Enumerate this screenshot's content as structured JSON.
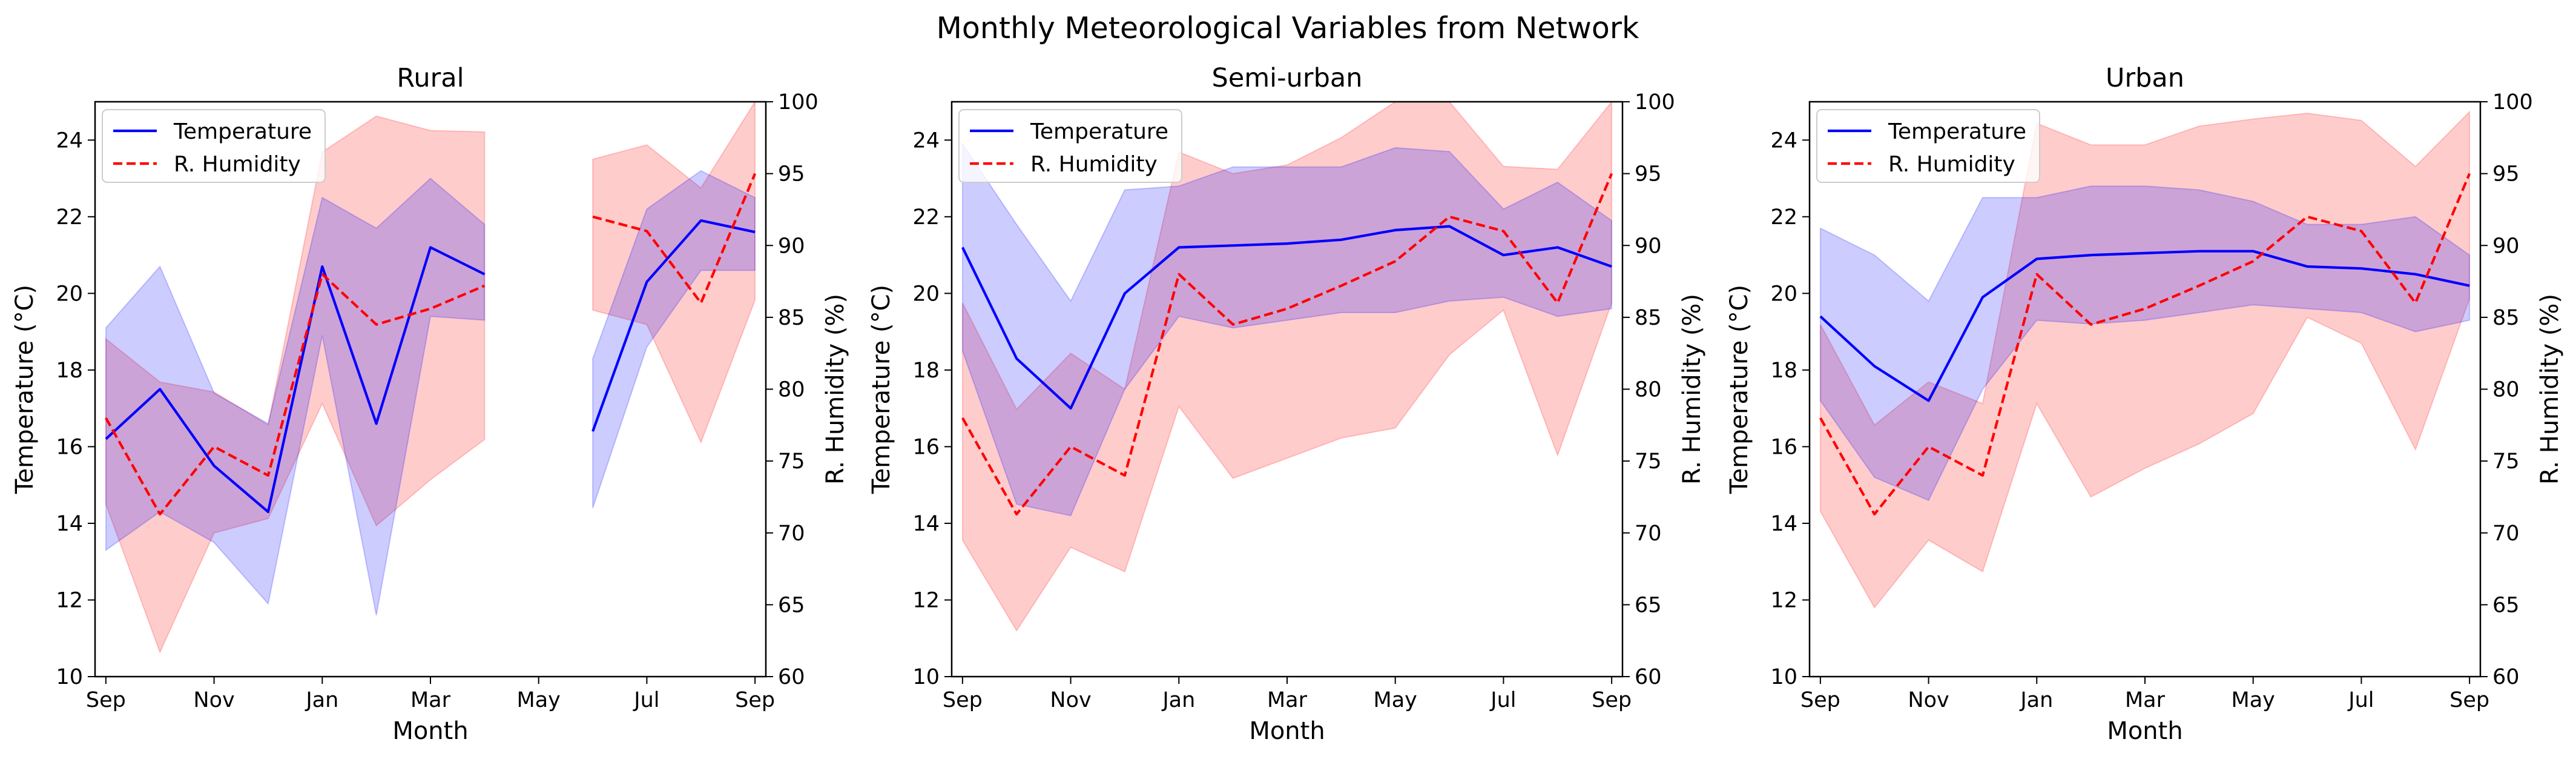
{
  "figure": {
    "title": "Monthly Meteorological Variables from Network"
  },
  "colors": {
    "temperature": "#0000ff",
    "temperature_band": "#0000ff",
    "humidity": "#ff0000",
    "humidity_band": "#ff0000"
  },
  "chart_data": [
    {
      "type": "line",
      "title": "Rural",
      "xlabel": "Month",
      "ylabel": "Temperature (°C)",
      "ylabel_right": "R. Humidity (%)",
      "xlim": [
        -0.2,
        12.2
      ],
      "ylim": [
        10,
        25
      ],
      "ylim_right": [
        60,
        100
      ],
      "x_ticks": [
        0,
        2,
        4,
        6,
        8,
        10,
        12
      ],
      "x_tick_labels": [
        "Sep",
        "Nov",
        "Jan",
        "Mar",
        "May",
        "Jul",
        "Sep"
      ],
      "y_ticks": [
        10,
        12,
        14,
        16,
        18,
        20,
        22,
        24
      ],
      "y_ticks_right": [
        60,
        65,
        70,
        75,
        80,
        85,
        90,
        95,
        100
      ],
      "legend": {
        "location": "upper-left",
        "entries": [
          "Temperature",
          "R. Humidity"
        ]
      },
      "x": [
        0,
        1,
        2,
        3,
        4,
        5,
        6,
        7,
        8,
        9,
        10,
        11,
        12
      ],
      "series": [
        {
          "name": "Temperature",
          "axis": "left",
          "style": "solid",
          "values": [
            16.2,
            17.5,
            15.5,
            14.3,
            20.7,
            16.6,
            21.2,
            20.5,
            null,
            16.4,
            20.3,
            21.9,
            21.6
          ],
          "lower": [
            13.3,
            14.3,
            13.5,
            11.9,
            18.9,
            11.6,
            19.4,
            19.3,
            null,
            14.4,
            18.6,
            20.6,
            20.6
          ],
          "upper": [
            19.1,
            20.7,
            17.4,
            16.6,
            22.5,
            21.7,
            23.0,
            21.8,
            null,
            18.3,
            22.2,
            23.2,
            22.5
          ]
        },
        {
          "name": "R. Humidity",
          "axis": "right",
          "style": "dashed",
          "values": [
            78.0,
            71.3,
            76.0,
            74.0,
            88.0,
            84.5,
            85.6,
            87.2,
            null,
            92.0,
            91.0,
            86.0,
            95.0
          ],
          "lower": [
            72.0,
            61.7,
            70.0,
            71.0,
            79.0,
            70.5,
            73.7,
            76.5,
            null,
            85.5,
            84.5,
            76.3,
            86.2
          ],
          "upper": [
            83.5,
            80.5,
            79.8,
            77.5,
            96.5,
            99.0,
            98.0,
            97.9,
            null,
            96.0,
            97.0,
            94.0,
            100.0
          ]
        }
      ]
    },
    {
      "type": "line",
      "title": "Semi-urban",
      "xlabel": "Month",
      "ylabel": "Temperature (°C)",
      "ylabel_right": "R. Humidity (%)",
      "xlim": [
        -0.2,
        12.2
      ],
      "ylim": [
        10,
        25
      ],
      "ylim_right": [
        60,
        100
      ],
      "x_ticks": [
        0,
        2,
        4,
        6,
        8,
        10,
        12
      ],
      "x_tick_labels": [
        "Sep",
        "Nov",
        "Jan",
        "Mar",
        "May",
        "Jul",
        "Sep"
      ],
      "y_ticks": [
        10,
        12,
        14,
        16,
        18,
        20,
        22,
        24
      ],
      "y_ticks_right": [
        60,
        65,
        70,
        75,
        80,
        85,
        90,
        95,
        100
      ],
      "legend": {
        "location": "upper-left",
        "entries": [
          "Temperature",
          "R. Humidity"
        ]
      },
      "x": [
        0,
        1,
        2,
        3,
        4,
        5,
        6,
        7,
        8,
        9,
        10,
        11,
        12
      ],
      "series": [
        {
          "name": "Temperature",
          "axis": "left",
          "style": "solid",
          "values": [
            21.2,
            18.3,
            17.0,
            20.0,
            21.2,
            21.25,
            21.3,
            21.4,
            21.65,
            21.75,
            21.0,
            21.2,
            20.7
          ],
          "lower": [
            18.5,
            14.5,
            14.2,
            17.5,
            19.4,
            19.1,
            19.3,
            19.5,
            19.5,
            19.8,
            19.9,
            19.4,
            19.6
          ],
          "upper": [
            23.9,
            21.8,
            19.8,
            22.7,
            22.8,
            23.3,
            23.3,
            23.3,
            23.8,
            23.7,
            22.2,
            22.9,
            21.9
          ]
        },
        {
          "name": "R. Humidity",
          "axis": "right",
          "style": "dashed",
          "values": [
            78.0,
            71.3,
            76.0,
            74.0,
            88.0,
            84.5,
            85.6,
            87.2,
            88.9,
            92.0,
            91.0,
            86.0,
            95.0
          ],
          "lower": [
            69.5,
            63.2,
            69.0,
            67.3,
            78.8,
            73.8,
            75.2,
            76.6,
            77.3,
            82.4,
            85.5,
            75.4,
            86.0
          ],
          "upper": [
            86.0,
            78.6,
            82.5,
            80.0,
            96.5,
            95.0,
            95.6,
            97.5,
            100.0,
            100.0,
            95.5,
            95.3,
            100.0
          ]
        }
      ]
    },
    {
      "type": "line",
      "title": "Urban",
      "xlabel": "Month",
      "ylabel": "Temperature (°C)",
      "ylabel_right": "R. Humidity (%)",
      "xlim": [
        -0.2,
        12.2
      ],
      "ylim": [
        10,
        25
      ],
      "ylim_right": [
        60,
        100
      ],
      "x_ticks": [
        0,
        2,
        4,
        6,
        8,
        10,
        12
      ],
      "x_tick_labels": [
        "Sep",
        "Nov",
        "Jan",
        "Mar",
        "May",
        "Jul",
        "Sep"
      ],
      "y_ticks": [
        10,
        12,
        14,
        16,
        18,
        20,
        22,
        24
      ],
      "y_ticks_right": [
        60,
        65,
        70,
        75,
        80,
        85,
        90,
        95,
        100
      ],
      "legend": {
        "location": "upper-left",
        "entries": [
          "Temperature",
          "R. Humidity"
        ]
      },
      "x": [
        0,
        1,
        2,
        3,
        4,
        5,
        6,
        7,
        8,
        9,
        10,
        11,
        12
      ],
      "series": [
        {
          "name": "Temperature",
          "axis": "left",
          "style": "solid",
          "values": [
            19.4,
            18.1,
            17.2,
            19.9,
            20.9,
            21.0,
            21.05,
            21.1,
            21.1,
            20.7,
            20.65,
            20.5,
            20.2
          ],
          "lower": [
            17.2,
            15.2,
            14.6,
            17.5,
            19.3,
            19.2,
            19.3,
            19.5,
            19.7,
            19.6,
            19.5,
            19.0,
            19.3
          ],
          "upper": [
            21.7,
            21.0,
            19.8,
            22.5,
            22.5,
            22.8,
            22.8,
            22.7,
            22.4,
            21.8,
            21.8,
            22.0,
            21.0
          ]
        },
        {
          "name": "R. Humidity",
          "axis": "right",
          "style": "dashed",
          "values": [
            78.0,
            71.3,
            76.0,
            74.0,
            88.0,
            84.5,
            85.6,
            87.2,
            88.9,
            92.0,
            91.0,
            86.0,
            95.0
          ],
          "lower": [
            71.5,
            64.8,
            69.5,
            67.3,
            79.0,
            72.5,
            74.5,
            76.2,
            78.3,
            85.0,
            83.2,
            75.8,
            86.3
          ],
          "upper": [
            84.5,
            77.5,
            80.5,
            79.0,
            98.5,
            97.0,
            97.0,
            98.3,
            98.8,
            99.2,
            98.7,
            95.5,
            99.3
          ]
        }
      ]
    }
  ]
}
